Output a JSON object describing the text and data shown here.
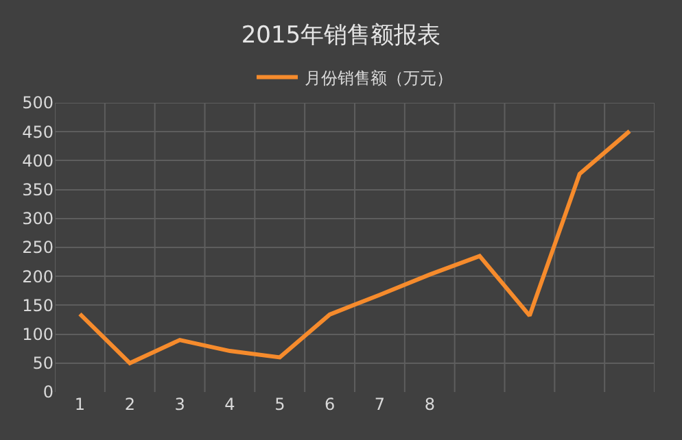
{
  "chart_data": {
    "type": "line",
    "title": "2015年销售额报表",
    "categories": [
      "1",
      "2",
      "3",
      "4",
      "5",
      "6",
      "7",
      "8",
      null,
      null,
      null,
      null
    ],
    "series": [
      {
        "name": "月份销售额（万元）",
        "color": "#f68b2c",
        "values": [
          135,
          50,
          90,
          71,
          60,
          134,
          168,
          203,
          235,
          132,
          377,
          451
        ]
      }
    ],
    "ylim": [
      0,
      500
    ],
    "yticks": [
      0,
      50,
      100,
      150,
      200,
      250,
      300,
      350,
      400,
      450,
      500
    ],
    "grid": true,
    "legend": "top",
    "marker": "none"
  }
}
